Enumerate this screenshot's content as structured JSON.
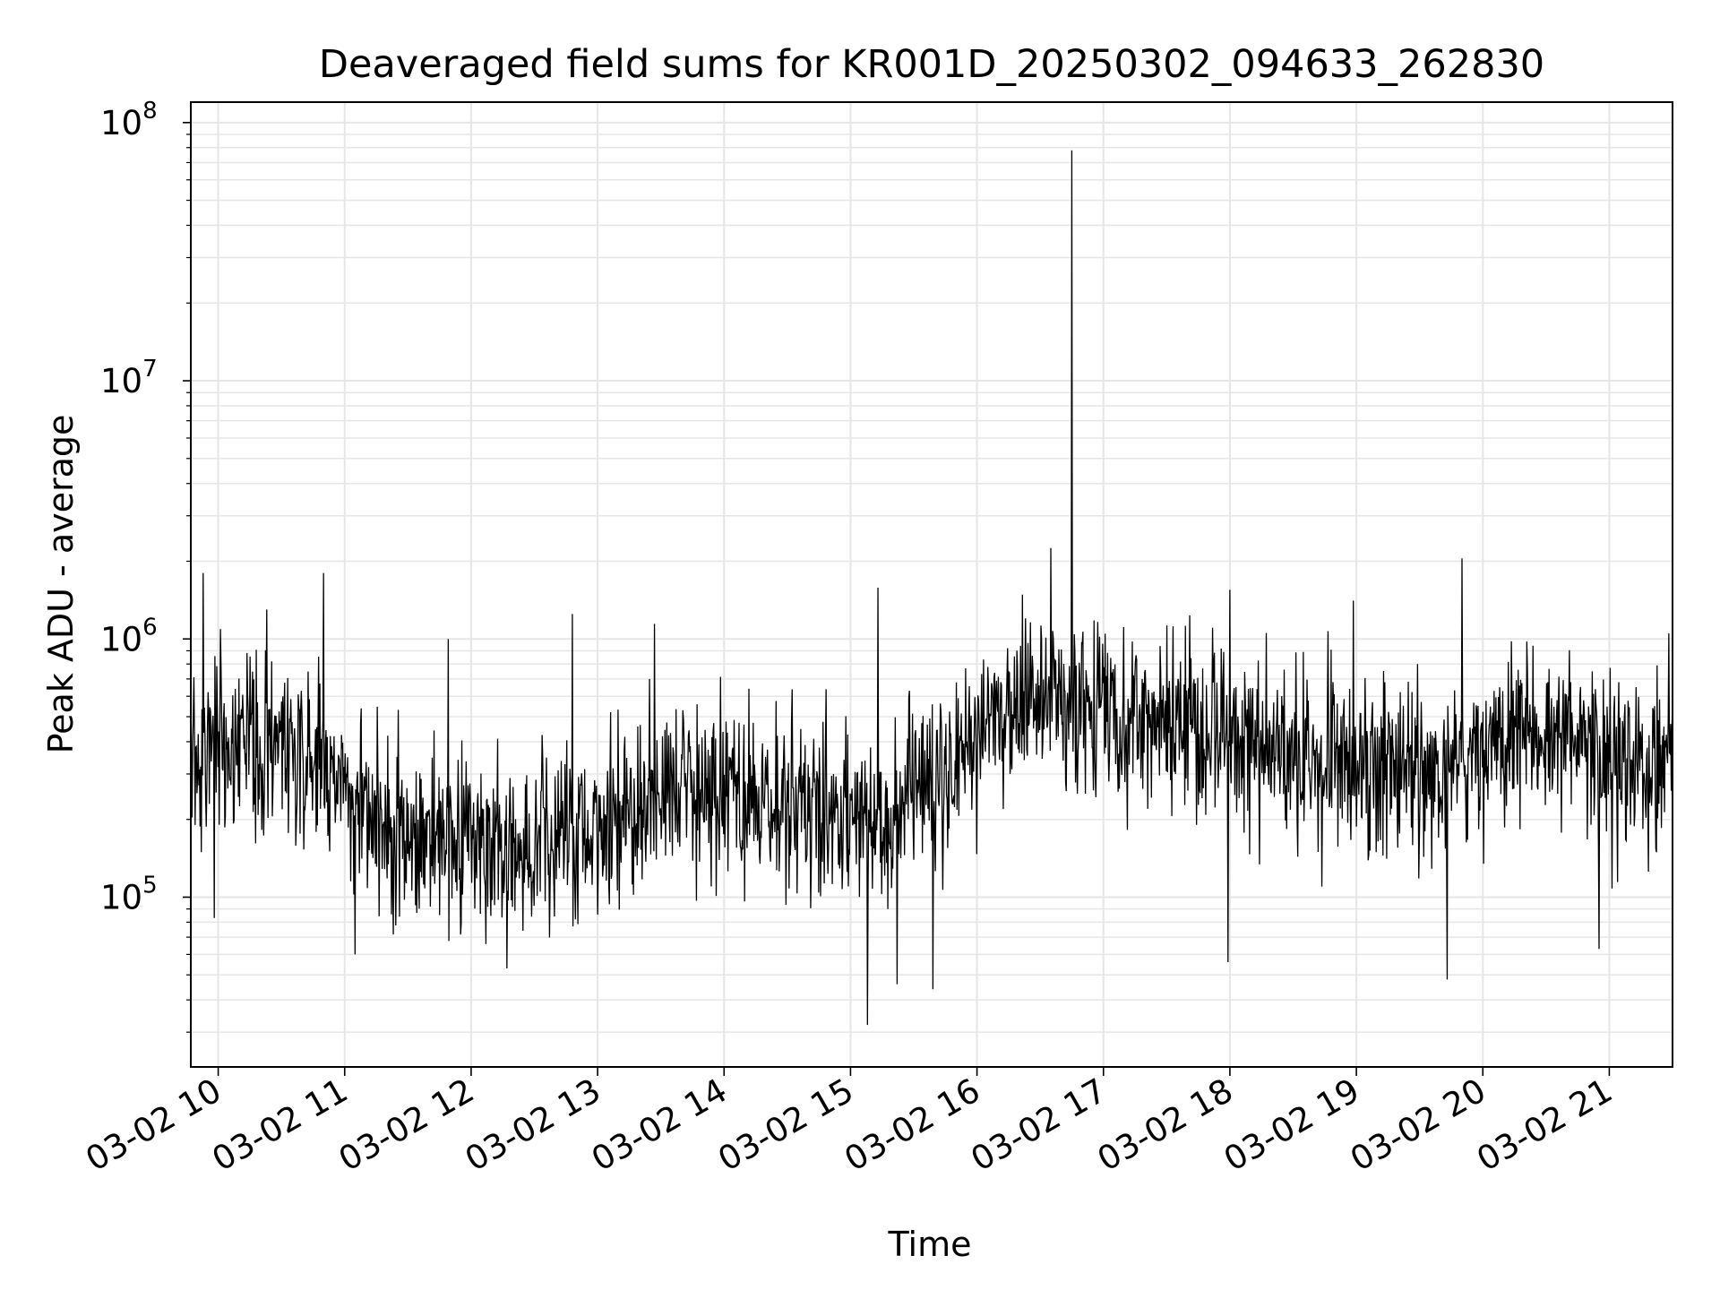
{
  "chart_data": {
    "type": "line",
    "title": "Deaveraged field sums for KR001D_20250302_094633_262830",
    "xlabel": "Time",
    "ylabel": "Peak ADU - average",
    "x_scale": "time",
    "y_scale": "log",
    "xlim": [
      "2025-03-02 09:47",
      "2025-03-02 21:30"
    ],
    "ylim": [
      22000,
      120000000
    ],
    "grid": true,
    "legend": "none",
    "line_color": "#000000",
    "grid_color": "#e6e6e6",
    "x_ticks": [
      {
        "value": "2025-03-02 10:00",
        "label": "03-02 10"
      },
      {
        "value": "2025-03-02 11:00",
        "label": "03-02 11"
      },
      {
        "value": "2025-03-02 12:00",
        "label": "03-02 12"
      },
      {
        "value": "2025-03-02 13:00",
        "label": "03-02 13"
      },
      {
        "value": "2025-03-02 14:00",
        "label": "03-02 14"
      },
      {
        "value": "2025-03-02 15:00",
        "label": "03-02 15"
      },
      {
        "value": "2025-03-02 16:00",
        "label": "03-02 16"
      },
      {
        "value": "2025-03-02 17:00",
        "label": "03-02 17"
      },
      {
        "value": "2025-03-02 18:00",
        "label": "03-02 18"
      },
      {
        "value": "2025-03-02 19:00",
        "label": "03-02 19"
      },
      {
        "value": "2025-03-02 20:00",
        "label": "03-02 20"
      },
      {
        "value": "2025-03-02 21:00",
        "label": "03-02 21"
      }
    ],
    "y_ticks": [
      {
        "value": 100000,
        "base": "10",
        "exp": "5"
      },
      {
        "value": 1000000,
        "base": "10",
        "exp": "6"
      },
      {
        "value": 10000000,
        "base": "10",
        "exp": "7"
      },
      {
        "value": 100000000,
        "base": "10",
        "exp": "8"
      }
    ],
    "series": [
      {
        "x": [
          "2025-03-02 09:47",
          "2025-03-02 10:00",
          "2025-03-02 10:20",
          "2025-03-02 10:40",
          "2025-03-02 11:00",
          "2025-03-02 11:20",
          "2025-03-02 11:40",
          "2025-03-02 12:00",
          "2025-03-02 12:20",
          "2025-03-02 12:40",
          "2025-03-02 13:00",
          "2025-03-02 13:20",
          "2025-03-02 13:40",
          "2025-03-02 14:00",
          "2025-03-02 14:20",
          "2025-03-02 14:40",
          "2025-03-02 15:00",
          "2025-03-02 15:20",
          "2025-03-02 15:40",
          "2025-03-02 16:00",
          "2025-03-02 16:20",
          "2025-03-02 16:40",
          "2025-03-02 17:00",
          "2025-03-02 17:20",
          "2025-03-02 17:40",
          "2025-03-02 18:00",
          "2025-03-02 18:20",
          "2025-03-02 18:40",
          "2025-03-02 19:00",
          "2025-03-02 19:20",
          "2025-03-02 19:40",
          "2025-03-02 20:00",
          "2025-03-02 20:20",
          "2025-03-02 20:40",
          "2025-03-02 21:00",
          "2025-03-02 21:20",
          "2025-03-02 21:30"
        ],
        "median": [
          350000,
          380000,
          400000,
          380000,
          260000,
          180000,
          160000,
          170000,
          150000,
          160000,
          200000,
          240000,
          280000,
          250000,
          220000,
          230000,
          200000,
          210000,
          280000,
          400000,
          550000,
          600000,
          550000,
          500000,
          450000,
          420000,
          380000,
          340000,
          320000,
          300000,
          300000,
          380000,
          450000,
          430000,
          300000,
          320000,
          450000
        ],
        "spikes": [
          {
            "x": "2025-03-02 09:53",
            "value": 1800000
          },
          {
            "x": "2025-03-02 10:23",
            "value": 1300000
          },
          {
            "x": "2025-03-02 10:50",
            "value": 1800000
          },
          {
            "x": "2025-03-02 11:49",
            "value": 1000000
          },
          {
            "x": "2025-03-02 12:48",
            "value": 1250000
          },
          {
            "x": "2025-03-02 15:13",
            "value": 1580000
          },
          {
            "x": "2025-03-02 16:45",
            "value": 78000000
          },
          {
            "x": "2025-03-02 16:35",
            "value": 2250000
          },
          {
            "x": "2025-03-02 18:00",
            "value": 1550000
          },
          {
            "x": "2025-03-02 19:50",
            "value": 2050000
          }
        ],
        "dips": [
          {
            "x": "2025-03-02 09:58",
            "value": 83000
          },
          {
            "x": "2025-03-02 11:05",
            "value": 60000
          },
          {
            "x": "2025-03-02 12:17",
            "value": 53000
          },
          {
            "x": "2025-03-02 15:08",
            "value": 32000
          },
          {
            "x": "2025-03-02 15:22",
            "value": 46000
          },
          {
            "x": "2025-03-02 15:39",
            "value": 44000
          },
          {
            "x": "2025-03-02 17:59",
            "value": 56000
          },
          {
            "x": "2025-03-02 19:43",
            "value": 48000
          },
          {
            "x": "2025-03-02 20:55",
            "value": 63000
          }
        ]
      }
    ]
  }
}
